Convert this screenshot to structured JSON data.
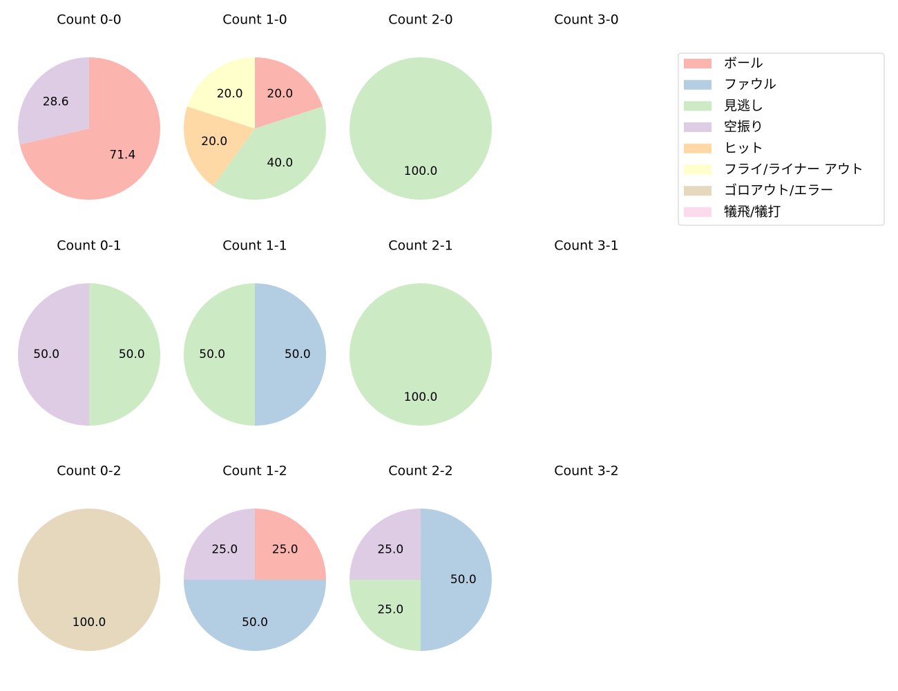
{
  "legend": {
    "entries": [
      {
        "label": "ボール",
        "color": "#fbb4ae"
      },
      {
        "label": "ファウル",
        "color": "#b3cde3"
      },
      {
        "label": "見逃し",
        "color": "#ccebc5"
      },
      {
        "label": "空振り",
        "color": "#decbe4"
      },
      {
        "label": "ヒット",
        "color": "#fed9a6"
      },
      {
        "label": "フライ/ライナー アウト",
        "color": "#ffffcc"
      },
      {
        "label": "ゴロアウト/エラー",
        "color": "#e5d8bd"
      },
      {
        "label": "犠飛/犠打",
        "color": "#fddaec"
      }
    ],
    "placement": "upper-right"
  },
  "chart_data": [
    {
      "type": "pie",
      "title": "Count 0-0",
      "slices": [
        {
          "category": "ボール",
          "value": 71.4
        },
        {
          "category": "空振り",
          "value": 28.6
        }
      ]
    },
    {
      "type": "pie",
      "title": "Count 1-0",
      "slices": [
        {
          "category": "ボール",
          "value": 20.0
        },
        {
          "category": "見逃し",
          "value": 40.0
        },
        {
          "category": "ヒット",
          "value": 20.0
        },
        {
          "category": "フライ/ライナー アウト",
          "value": 20.0
        }
      ]
    },
    {
      "type": "pie",
      "title": "Count 2-0",
      "slices": [
        {
          "category": "見逃し",
          "value": 100.0
        }
      ]
    },
    {
      "type": "pie",
      "title": "Count 3-0",
      "slices": []
    },
    {
      "type": "pie",
      "title": "Count 0-1",
      "slices": [
        {
          "category": "見逃し",
          "value": 50.0
        },
        {
          "category": "空振り",
          "value": 50.0
        }
      ]
    },
    {
      "type": "pie",
      "title": "Count 1-1",
      "slices": [
        {
          "category": "ファウル",
          "value": 50.0
        },
        {
          "category": "見逃し",
          "value": 50.0
        }
      ]
    },
    {
      "type": "pie",
      "title": "Count 2-1",
      "slices": [
        {
          "category": "見逃し",
          "value": 100.0
        }
      ]
    },
    {
      "type": "pie",
      "title": "Count 3-1",
      "slices": []
    },
    {
      "type": "pie",
      "title": "Count 0-2",
      "slices": [
        {
          "category": "ゴロアウト/エラー",
          "value": 100.0
        }
      ]
    },
    {
      "type": "pie",
      "title": "Count 1-2",
      "slices": [
        {
          "category": "ボール",
          "value": 25.0
        },
        {
          "category": "ファウル",
          "value": 50.0
        },
        {
          "category": "空振り",
          "value": 25.0
        }
      ]
    },
    {
      "type": "pie",
      "title": "Count 2-2",
      "slices": [
        {
          "category": "ファウル",
          "value": 50.0
        },
        {
          "category": "見逃し",
          "value": 25.0
        },
        {
          "category": "空振り",
          "value": 25.0
        }
      ]
    },
    {
      "type": "pie",
      "title": "Count 3-2",
      "slices": []
    }
  ]
}
